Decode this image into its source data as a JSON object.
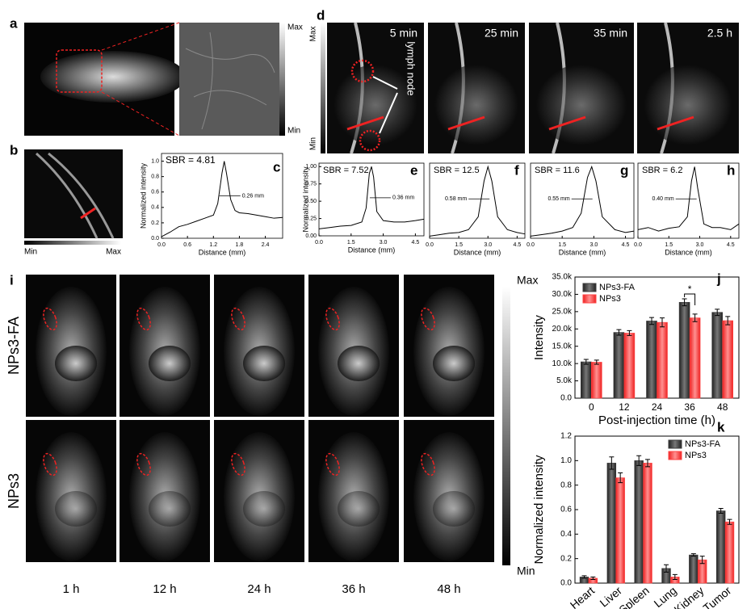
{
  "panel_labels": [
    "a",
    "b",
    "c",
    "d",
    "e",
    "f",
    "g",
    "h",
    "i",
    "j",
    "k"
  ],
  "panel_a": {
    "max_label": "Max",
    "min_label": "Min"
  },
  "panel_b": {
    "min_label": "Min",
    "max_label": "Max"
  },
  "panel_d": {
    "max_label": "Max",
    "min_label": "Min",
    "times": [
      "5 min",
      "25 min",
      "35 min",
      "2.5 h"
    ],
    "annotation": "lymph node"
  },
  "panel_i": {
    "rows": [
      "NPs3-FA",
      "NPs3"
    ],
    "times": [
      "1 h",
      "12 h",
      "24 h",
      "36 h",
      "48 h"
    ],
    "max_label": "Max",
    "min_label": "Min"
  },
  "chart_data": [
    {
      "type": "line",
      "ylabel": "Normalized intensity",
      "xlabel": "Distance (mm)",
      "annotations": [
        "SBR = 4.81",
        "0.26 mm"
      ],
      "x": [
        0,
        0.2,
        0.4,
        0.6,
        0.8,
        1.0,
        1.2,
        1.3,
        1.4,
        1.45,
        1.5,
        1.6,
        1.7,
        1.8,
        2.0,
        2.2,
        2.4,
        2.6,
        2.8
      ],
      "values": [
        0.02,
        0.08,
        0.15,
        0.18,
        0.22,
        0.26,
        0.3,
        0.45,
        0.85,
        1.0,
        0.85,
        0.5,
        0.36,
        0.33,
        0.32,
        0.3,
        0.28,
        0.26,
        0.27
      ],
      "xlim": [
        0,
        2.8
      ],
      "ylim": [
        0,
        1.1
      ],
      "xticks": [
        {
          "value": 0,
          "label": "0.0"
        },
        0.6,
        1.2,
        1.8,
        2.4
      ],
      "yticks": [
        {
          "value": 0,
          "label": "0.0"
        },
        0.2,
        0.4,
        0.6,
        0.8,
        {
          "value": 1,
          "label": "1.0"
        }
      ],
      "color": "#000000"
    },
    {
      "type": "line",
      "ylabel": "Normalized intensity",
      "xlabel": "Distance (mm)",
      "annotations": [
        "SBR = 7.52",
        "0.36 mm"
      ],
      "x": [
        0,
        0.5,
        1,
        1.5,
        2,
        2.2,
        2.35,
        2.45,
        2.55,
        2.7,
        3,
        3.5,
        4,
        4.5,
        4.9
      ],
      "values": [
        0.1,
        0.12,
        0.14,
        0.15,
        0.2,
        0.4,
        0.9,
        1.0,
        0.85,
        0.35,
        0.22,
        0.2,
        0.2,
        0.22,
        0.24
      ],
      "xlim": [
        0,
        4.9
      ],
      "ylim": [
        0,
        1.05
      ],
      "xticks": [
        {
          "value": 0,
          "label": "0.0"
        },
        1.5,
        {
          "value": 3,
          "label": "3.0"
        },
        4.5
      ],
      "yticks": [
        {
          "value": 0,
          "label": "0.00"
        },
        0.25,
        {
          "value": 0.5,
          "label": "0.50"
        },
        0.75,
        {
          "value": 1,
          "label": "1.00"
        }
      ],
      "color": "#000000"
    },
    {
      "type": "line",
      "xlabel": "Distance (mm)",
      "annotations": [
        "SBR = 12.5",
        "0.58 mm"
      ],
      "x": [
        0,
        0.5,
        1,
        1.5,
        2,
        2.5,
        2.8,
        3.0,
        3.2,
        3.5,
        4,
        4.5,
        4.9
      ],
      "values": [
        0.03,
        0.05,
        0.07,
        0.08,
        0.12,
        0.3,
        0.8,
        1.0,
        0.8,
        0.3,
        0.12,
        0.08,
        0.06
      ],
      "xlim": [
        0,
        4.9
      ],
      "ylim": [
        0,
        1.05
      ],
      "xticks": [
        {
          "value": 0,
          "label": "0.0"
        },
        1.5,
        {
          "value": 3,
          "label": "3.0"
        },
        4.5
      ],
      "color": "#000000"
    },
    {
      "type": "line",
      "xlabel": "Distance (mm)",
      "annotations": [
        "SBR = 11.6",
        "0.55 mm"
      ],
      "x": [
        0,
        0.5,
        1,
        1.5,
        2,
        2.4,
        2.7,
        2.9,
        3.1,
        3.4,
        4,
        4.5,
        4.9
      ],
      "values": [
        0.03,
        0.05,
        0.07,
        0.1,
        0.15,
        0.35,
        0.85,
        1.0,
        0.8,
        0.3,
        0.12,
        0.08,
        0.1
      ],
      "xlim": [
        0,
        4.9
      ],
      "ylim": [
        0,
        1.05
      ],
      "xticks": [
        {
          "value": 0,
          "label": "0.0"
        },
        1.5,
        {
          "value": 3,
          "label": "3.0"
        },
        4.5
      ],
      "color": "#000000"
    },
    {
      "type": "line",
      "xlabel": "Distance (mm)",
      "annotations": [
        "SBR = 6.2",
        "0.40 mm"
      ],
      "x": [
        0,
        0.5,
        1,
        1.5,
        2,
        2.4,
        2.6,
        2.75,
        2.9,
        3.2,
        3.6,
        4,
        4.5,
        4.9
      ],
      "values": [
        0.12,
        0.15,
        0.1,
        0.14,
        0.16,
        0.3,
        0.8,
        1.0,
        0.7,
        0.2,
        0.15,
        0.15,
        0.12,
        0.2
      ],
      "xlim": [
        0,
        4.9
      ],
      "ylim": [
        0,
        1.05
      ],
      "xticks": [
        {
          "value": 0,
          "label": "0.0"
        },
        1.5,
        {
          "value": 3,
          "label": "3.0"
        },
        4.5
      ],
      "color": "#000000"
    },
    {
      "type": "bar",
      "ylabel": "Intensity",
      "xlabel": "Post-injection time (h)",
      "annotations": [
        "*"
      ],
      "categories": [
        "0",
        "12",
        "24",
        "36",
        "48"
      ],
      "series": [
        {
          "name": "NPs3-FA",
          "color": "#3c3c3c",
          "values": [
            10500,
            19000,
            22300,
            27700,
            24800
          ],
          "errors": [
            700,
            800,
            1000,
            1000,
            900
          ]
        },
        {
          "name": "NPs3",
          "color": "#ff4343",
          "values": [
            10400,
            18800,
            21900,
            23200,
            22400
          ],
          "errors": [
            600,
            700,
            1300,
            1100,
            1200
          ]
        }
      ],
      "ylim": [
        0,
        35000
      ],
      "yticks": [
        {
          "value": 0,
          "label": "0.0"
        },
        {
          "value": 5000,
          "label": "5.0k"
        },
        {
          "value": 10000,
          "label": "10.0k"
        },
        {
          "value": 15000,
          "label": "15.0k"
        },
        {
          "value": 20000,
          "label": "20.0k"
        },
        {
          "value": 25000,
          "label": "25.0k"
        },
        {
          "value": 30000,
          "label": "30.0k"
        },
        {
          "value": 35000,
          "label": "35.0k"
        }
      ]
    },
    {
      "type": "bar",
      "ylabel": "Normalized intensity",
      "categories": [
        "Heart",
        "Liver",
        "Spleen",
        "Lung",
        "Kidney",
        "Tumor"
      ],
      "series": [
        {
          "name": "NPs3-FA",
          "color": "#3c3c3c",
          "values": [
            0.05,
            0.98,
            1.0,
            0.12,
            0.23,
            0.59
          ],
          "errors": [
            0.01,
            0.05,
            0.04,
            0.03,
            0.01,
            0.02
          ]
        },
        {
          "name": "NPs3",
          "color": "#ff4343",
          "values": [
            0.04,
            0.86,
            0.98,
            0.05,
            0.19,
            0.5
          ],
          "errors": [
            0.01,
            0.04,
            0.03,
            0.02,
            0.03,
            0.02
          ]
        }
      ],
      "ylim": [
        0,
        1.2
      ],
      "yticks": [
        {
          "value": 0,
          "label": "0.0"
        },
        0.2,
        0.4,
        0.6,
        0.8,
        {
          "value": 1,
          "label": "1.0"
        },
        1.2
      ]
    }
  ]
}
